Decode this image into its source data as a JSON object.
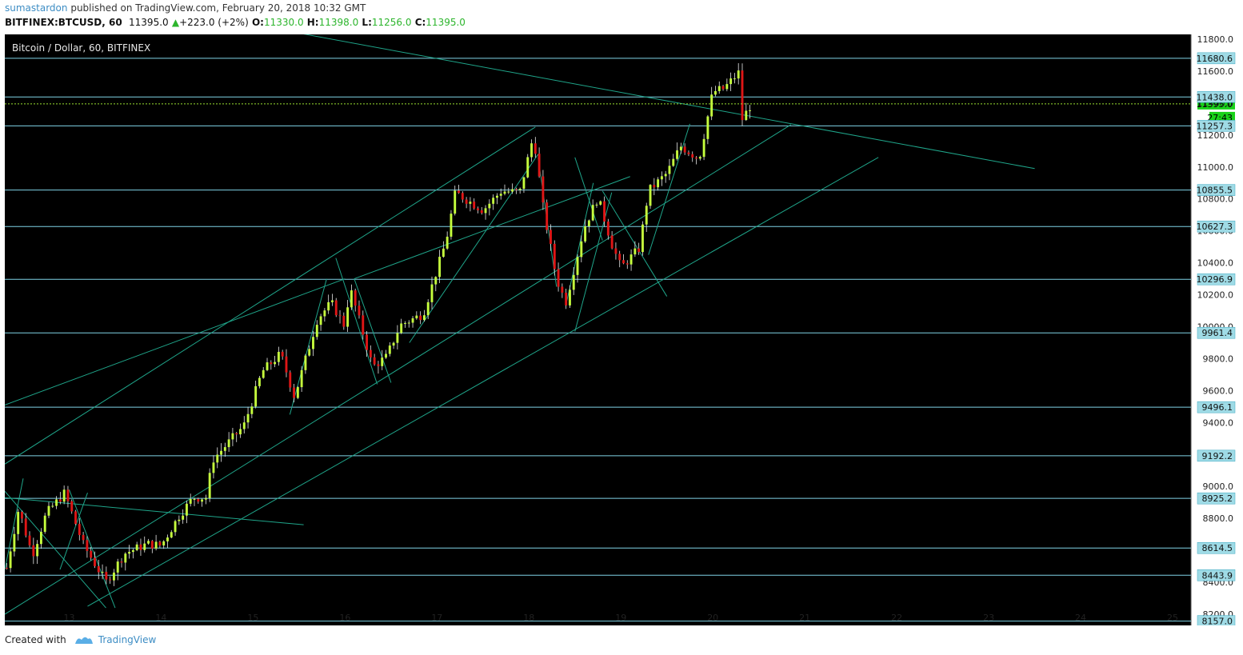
{
  "header": {
    "user": "sumastardon",
    "published": "published on TradingView.com, February 20, 2018 10:32 GMT",
    "symbol": "BITFINEX:BTCUSD, 60",
    "last": "11395.0",
    "change": "+223.0 (+2%)",
    "open_label": "O:",
    "open": "11330.0",
    "high_label": "H:",
    "high": "11398.0",
    "low_label": "L:",
    "low": "11256.0",
    "close_label": "C:",
    "close": "11395.0"
  },
  "footer": {
    "created_with": "Created with",
    "brand": "TradingView"
  },
  "colors": {
    "background": "#000000",
    "up": "#c6ff3d",
    "down": "#e01616",
    "hline": "#7fd3e6",
    "trend": "#1fa58a",
    "price_line": "#9adf32",
    "label_bg": "#9fdbe6",
    "price_label_bg": "#19d219"
  },
  "chart_data": {
    "type": "candlestick",
    "title": "Bitcoin / Dollar, 60, BITFINEX",
    "ylim": [
      8130,
      11830
    ],
    "xlim": [
      12.3,
      25.2
    ],
    "x_ticks": [
      "13",
      "14",
      "15",
      "16",
      "17",
      "18",
      "19",
      "20",
      "21",
      "22",
      "23",
      "24",
      "25"
    ],
    "y_ticks": [
      "8200.0",
      "8400.0",
      "8600.0",
      "8800.0",
      "9000.0",
      "9200.0",
      "9400.0",
      "9600.0",
      "9800.0",
      "10000.0",
      "10200.0",
      "10400.0",
      "10600.0",
      "10800.0",
      "11000.0",
      "11200.0",
      "11400.0",
      "11600.0",
      "11800.0"
    ],
    "levels": [
      "11680.6",
      "11438.0",
      "11257.3",
      "10855.5",
      "10627.3",
      "10296.9",
      "9961.4",
      "9496.1",
      "9192.2",
      "8925.2",
      "8614.5",
      "8443.9",
      "8157.0"
    ],
    "last_price": "11395.0",
    "countdown": "27:43",
    "path": [
      [
        12.32,
        8490
      ],
      [
        12.45,
        8860
      ],
      [
        12.6,
        8570
      ],
      [
        12.75,
        8830
      ],
      [
        12.95,
        8960
      ],
      [
        13.15,
        8640
      ],
      [
        13.4,
        8400
      ],
      [
        13.6,
        8580
      ],
      [
        13.85,
        8640
      ],
      [
        14.0,
        8630
      ],
      [
        14.2,
        8820
      ],
      [
        14.35,
        8930
      ],
      [
        14.5,
        8930
      ],
      [
        14.55,
        9160
      ],
      [
        14.9,
        9380
      ],
      [
        15.1,
        9720
      ],
      [
        15.3,
        9830
      ],
      [
        15.45,
        9560
      ],
      [
        15.7,
        10050
      ],
      [
        15.85,
        10150
      ],
      [
        16.0,
        10000
      ],
      [
        16.05,
        10250
      ],
      [
        16.3,
        9750
      ],
      [
        16.45,
        9810
      ],
      [
        16.6,
        10010
      ],
      [
        16.85,
        10080
      ],
      [
        17.1,
        10540
      ],
      [
        17.2,
        10840
      ],
      [
        17.5,
        10730
      ],
      [
        17.7,
        10850
      ],
      [
        17.9,
        10840
      ],
      [
        18.05,
        11200
      ],
      [
        18.15,
        10760
      ],
      [
        18.3,
        10300
      ],
      [
        18.4,
        10150
      ],
      [
        18.6,
        10620
      ],
      [
        18.75,
        10810
      ],
      [
        18.9,
        10520
      ],
      [
        19.0,
        10370
      ],
      [
        19.2,
        10490
      ],
      [
        19.3,
        10850
      ],
      [
        19.5,
        10960
      ],
      [
        19.65,
        11130
      ],
      [
        19.85,
        11050
      ],
      [
        20.0,
        11470
      ],
      [
        20.12,
        11490
      ],
      [
        20.28,
        11590
      ],
      [
        20.32,
        11300
      ],
      [
        20.42,
        11395
      ]
    ]
  }
}
